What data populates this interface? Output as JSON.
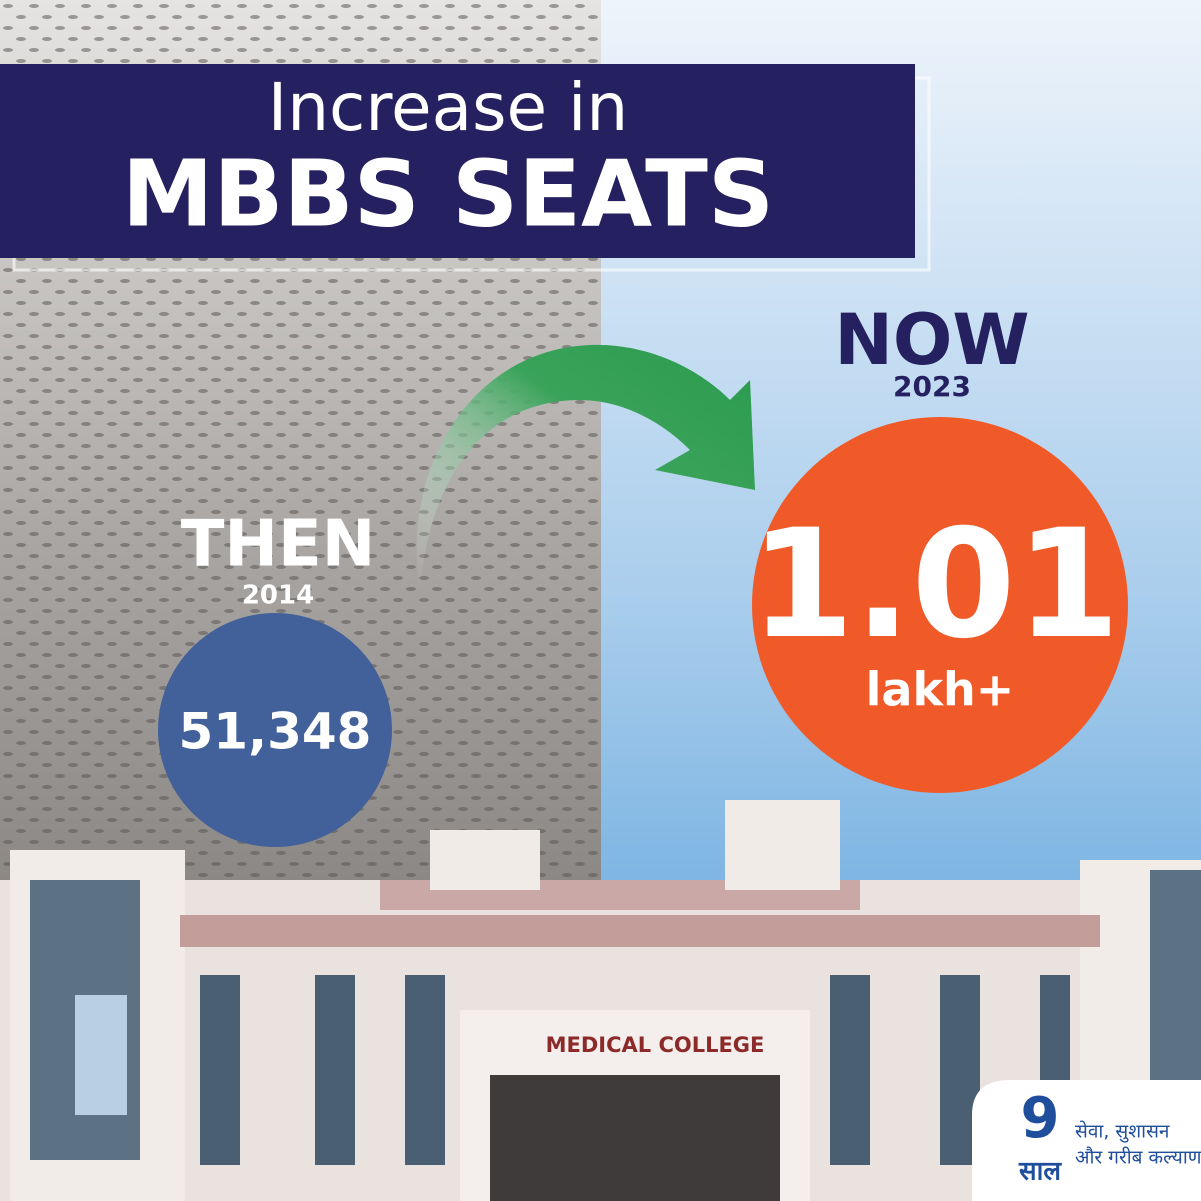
{
  "header": {
    "line1": "Increase in",
    "line2": "MBBS SEATS"
  },
  "then": {
    "label": "THEN",
    "year": "2014",
    "value": "51,348"
  },
  "now": {
    "label": "NOW",
    "year": "2023",
    "value": "1.01",
    "unit": "lakh+"
  },
  "building": {
    "sign": "MEDICAL COLLEGE"
  },
  "logo": {
    "number": "9",
    "word": "साल",
    "tagline1": "सेवा, सुशासन",
    "tagline2": "और गरीब कल्याण"
  }
}
